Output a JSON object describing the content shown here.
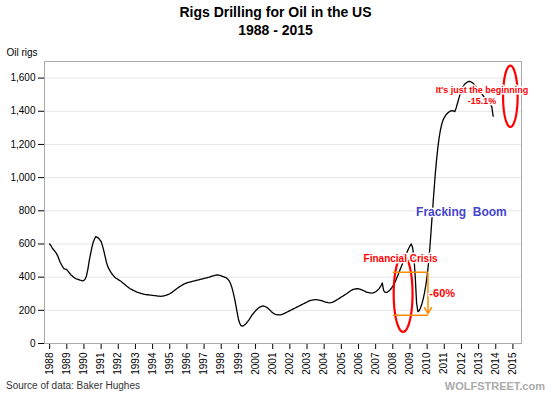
{
  "chart_data": {
    "type": "line",
    "title": "Rigs Drilling for Oil in the US",
    "subtitle": "1988 - 2015",
    "ylabel": "Oil rigs",
    "source": "Source of data: Baker Hughes",
    "watermark": "WOLFSTREET.com",
    "color": "#000000",
    "grid": true,
    "xlim": [
      1987.7,
      2015.5
    ],
    "xticks": [
      1988,
      1989,
      1990,
      1991,
      1992,
      1993,
      1994,
      1995,
      1996,
      1997,
      1998,
      1999,
      2000,
      2001,
      2002,
      2003,
      2004,
      2005,
      2006,
      2007,
      2008,
      2009,
      2010,
      2011,
      2012,
      2013,
      2014,
      2015
    ],
    "ylim": [
      0,
      1700
    ],
    "yticks": [
      0,
      200,
      400,
      600,
      800,
      {
        "value": 1000,
        "label": "1,000"
      },
      {
        "value": 1200,
        "label": "1,200"
      },
      {
        "value": 1400,
        "label": "1,400"
      },
      {
        "value": 1600,
        "label": "1,600"
      }
    ],
    "annotations": [
      {
        "text": "Financial Crisis",
        "color": "red"
      },
      {
        "text": "-60%",
        "color": "red"
      },
      {
        "text": "Fracking  Boom",
        "color": "#4444cc"
      },
      {
        "text": "It's just the beginning",
        "color": "red"
      },
      {
        "text": "-15.1%",
        "color": "red"
      }
    ],
    "x": [
      1988.0,
      1988.077,
      1988.154,
      1988.231,
      1988.308,
      1988.385,
      1988.462,
      1988.538,
      1988.615,
      1988.692,
      1988.769,
      1988.846,
      1988.923,
      1989.0,
      1989.077,
      1989.154,
      1989.231,
      1989.308,
      1989.385,
      1989.462,
      1989.538,
      1989.615,
      1989.692,
      1989.769,
      1989.846,
      1989.923,
      1990.0,
      1990.077,
      1990.154,
      1990.231,
      1990.308,
      1990.385,
      1990.462,
      1990.538,
      1990.615,
      1990.692,
      1990.769,
      1990.846,
      1990.923,
      1991.0,
      1991.077,
      1991.154,
      1991.231,
      1991.308,
      1991.385,
      1991.462,
      1991.538,
      1991.615,
      1991.692,
      1991.769,
      1991.846,
      1991.923,
      1992.0,
      1992.077,
      1992.154,
      1992.231,
      1992.308,
      1992.385,
      1992.462,
      1992.538,
      1992.615,
      1992.692,
      1992.769,
      1992.846,
      1992.923,
      1993.0,
      1993.077,
      1993.154,
      1993.231,
      1993.308,
      1993.385,
      1993.462,
      1993.538,
      1993.615,
      1993.692,
      1993.769,
      1993.846,
      1993.923,
      1994.0,
      1994.077,
      1994.154,
      1994.231,
      1994.308,
      1994.385,
      1994.462,
      1994.538,
      1994.615,
      1994.692,
      1994.769,
      1994.846,
      1994.923,
      1995.0,
      1995.077,
      1995.154,
      1995.231,
      1995.308,
      1995.385,
      1995.462,
      1995.538,
      1995.615,
      1995.692,
      1995.769,
      1995.846,
      1995.923,
      1996.0,
      1996.077,
      1996.154,
      1996.231,
      1996.308,
      1996.385,
      1996.462,
      1996.538,
      1996.615,
      1996.692,
      1996.769,
      1996.846,
      1996.923,
      1997.0,
      1997.077,
      1997.154,
      1997.231,
      1997.308,
      1997.385,
      1997.462,
      1997.538,
      1997.615,
      1997.692,
      1997.769,
      1997.846,
      1997.923,
      1998.0,
      1998.077,
      1998.154,
      1998.231,
      1998.308,
      1998.385,
      1998.462,
      1998.538,
      1998.615,
      1998.692,
      1998.769,
      1998.846,
      1998.923,
      1999.0,
      1999.077,
      1999.154,
      1999.231,
      1999.308,
      1999.385,
      1999.462,
      1999.538,
      1999.615,
      1999.692,
      1999.769,
      1999.846,
      1999.923,
      2000.0,
      2000.077,
      2000.154,
      2000.231,
      2000.308,
      2000.385,
      2000.462,
      2000.538,
      2000.615,
      2000.692,
      2000.769,
      2000.846,
      2000.923,
      2001.0,
      2001.077,
      2001.154,
      2001.231,
      2001.308,
      2001.385,
      2001.462,
      2001.538,
      2001.615,
      2001.692,
      2001.769,
      2001.846,
      2001.923,
      2002.0,
      2002.077,
      2002.154,
      2002.231,
      2002.308,
      2002.385,
      2002.462,
      2002.538,
      2002.615,
      2002.692,
      2002.769,
      2002.846,
      2002.923,
      2003.0,
      2003.077,
      2003.154,
      2003.231,
      2003.308,
      2003.385,
      2003.462,
      2003.538,
      2003.615,
      2003.692,
      2003.769,
      2003.846,
      2003.923,
      2004.0,
      2004.077,
      2004.154,
      2004.231,
      2004.308,
      2004.385,
      2004.462,
      2004.538,
      2004.615,
      2004.692,
      2004.769,
      2004.846,
      2004.923,
      2005.0,
      2005.077,
      2005.154,
      2005.231,
      2005.308,
      2005.385,
      2005.462,
      2005.538,
      2005.615,
      2005.692,
      2005.769,
      2005.846,
      2005.923,
      2006.0,
      2006.077,
      2006.154,
      2006.231,
      2006.308,
      2006.385,
      2006.462,
      2006.538,
      2006.615,
      2006.692,
      2006.769,
      2006.846,
      2006.923,
      2007.0,
      2007.077,
      2007.154,
      2007.231,
      2007.308,
      2007.385,
      2007.462,
      2007.538,
      2007.615,
      2007.692,
      2007.769,
      2007.846,
      2007.923,
      2008.0,
      2008.077,
      2008.154,
      2008.231,
      2008.308,
      2008.385,
      2008.462,
      2008.538,
      2008.615,
      2008.692,
      2008.769,
      2008.846,
      2008.923,
      2009.0,
      2009.077,
      2009.154,
      2009.231,
      2009.308,
      2009.385,
      2009.462,
      2009.538,
      2009.615,
      2009.692,
      2009.769,
      2009.846,
      2009.923,
      2010.0,
      2010.077,
      2010.154,
      2010.231,
      2010.308,
      2010.385,
      2010.462,
      2010.538,
      2010.615,
      2010.692,
      2010.769,
      2010.846,
      2010.923,
      2011.0,
      2011.077,
      2011.154,
      2011.231,
      2011.308,
      2011.385,
      2011.462,
      2011.538,
      2011.615,
      2011.692,
      2011.769,
      2011.846,
      2011.923,
      2012.0,
      2012.077,
      2012.154,
      2012.231,
      2012.308,
      2012.385,
      2012.462,
      2012.538,
      2012.615,
      2012.692,
      2012.769,
      2012.846,
      2012.923,
      2013.0,
      2013.077,
      2013.154,
      2013.231,
      2013.308,
      2013.385,
      2013.462,
      2013.538,
      2013.615,
      2013.692,
      2013.769,
      2013.846
    ],
    "values": [
      600,
      590,
      575,
      565,
      555,
      545,
      530,
      510,
      490,
      475,
      460,
      450,
      448,
      445,
      435,
      425,
      415,
      408,
      400,
      395,
      390,
      388,
      385,
      382,
      380,
      378,
      380,
      390,
      410,
      450,
      500,
      540,
      580,
      610,
      630,
      645,
      640,
      635,
      625,
      615,
      590,
      560,
      525,
      490,
      465,
      448,
      435,
      422,
      412,
      402,
      395,
      390,
      385,
      380,
      375,
      368,
      362,
      355,
      348,
      342,
      336,
      330,
      326,
      322,
      318,
      314,
      310,
      308,
      305,
      302,
      300,
      298,
      296,
      295,
      294,
      293,
      292,
      291,
      290,
      289,
      288,
      287,
      286,
      285,
      284,
      285,
      286,
      288,
      290,
      293,
      296,
      300,
      305,
      310,
      316,
      322,
      328,
      334,
      340,
      345,
      350,
      355,
      360,
      363,
      366,
      368,
      370,
      372,
      374,
      376,
      378,
      380,
      382,
      384,
      386,
      388,
      390,
      392,
      394,
      396,
      398,
      400,
      403,
      406,
      408,
      410,
      412,
      413,
      412,
      410,
      408,
      405,
      402,
      398,
      395,
      388,
      378,
      362,
      340,
      310,
      275,
      235,
      190,
      148,
      122,
      108,
      105,
      108,
      114,
      122,
      132,
      143,
      155,
      168,
      178,
      188,
      197,
      205,
      212,
      218,
      222,
      225,
      226,
      224,
      220,
      215,
      208,
      200,
      192,
      185,
      180,
      176,
      174,
      172,
      172,
      173,
      175,
      178,
      182,
      186,
      190,
      194,
      198,
      202,
      206,
      210,
      214,
      218,
      222,
      226,
      230,
      234,
      238,
      242,
      246,
      250,
      254,
      258,
      260,
      262,
      263,
      264,
      264,
      263,
      262,
      260,
      258,
      255,
      252,
      250,
      248,
      246,
      245,
      246,
      248,
      251,
      255,
      260,
      265,
      270,
      275,
      280,
      285,
      290,
      295,
      300,
      306,
      312,
      318,
      322,
      326,
      328,
      330,
      331,
      330,
      328,
      325,
      322,
      318,
      314,
      310,
      308,
      306,
      305,
      304,
      305,
      308,
      312,
      318,
      325,
      335,
      348,
      365,
      320,
      310,
      308,
      310,
      316,
      324,
      334,
      346,
      360,
      376,
      395,
      415,
      435,
      455,
      475,
      495,
      515,
      535,
      555,
      573,
      588,
      600,
      578,
      520,
      400,
      245,
      192,
      198,
      215,
      238,
      268,
      305,
      350,
      408,
      480,
      570,
      680,
      790,
      900,
      1005,
      1095,
      1172,
      1235,
      1284,
      1320,
      1345,
      1362,
      1375,
      1385,
      1393,
      1398,
      1402,
      1403,
      1402,
      1398,
      1420,
      1448,
      1476,
      1503,
      1526,
      1545,
      1558,
      1568,
      1574,
      1578,
      1580,
      1578,
      1574,
      1568,
      1558,
      1548,
      1538,
      1528,
      1518,
      1508,
      1498,
      1488,
      1478,
      1468,
      1458,
      1448,
      1438,
      1428,
      1370
    ]
  }
}
